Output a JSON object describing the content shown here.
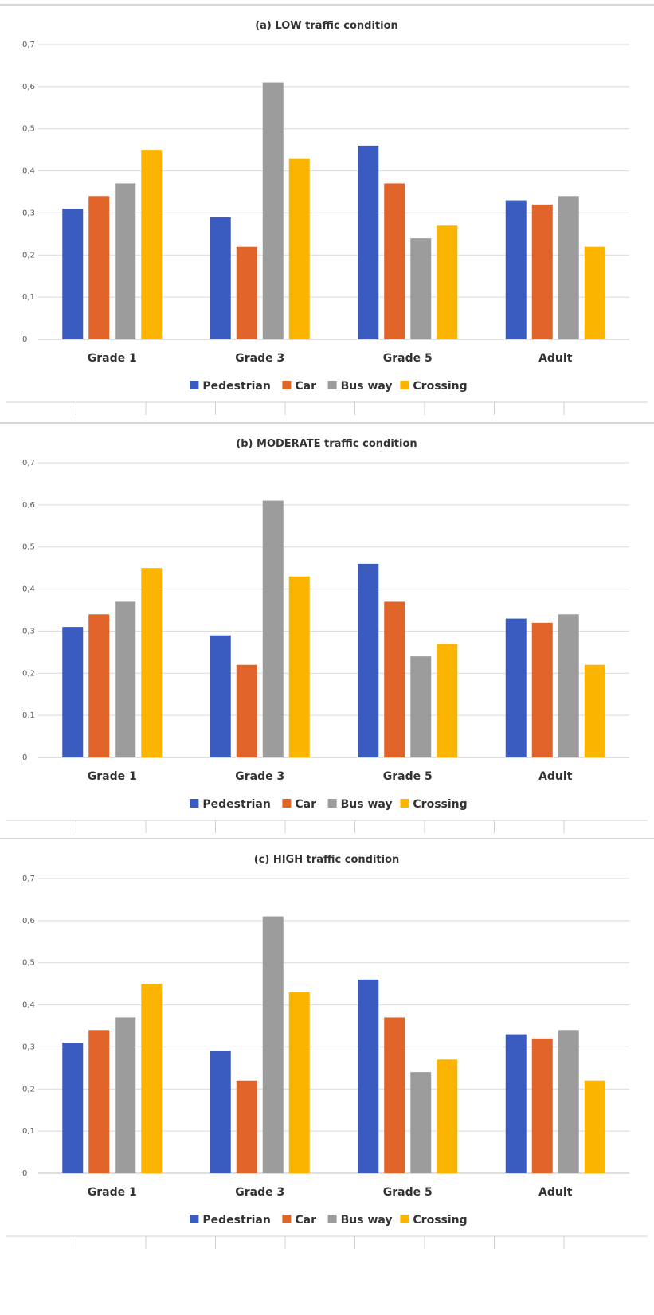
{
  "colors": {
    "Pedestrian": "#3a5bbf",
    "Car": "#e0642a",
    "Bus way": "#9c9c9c",
    "Crossing": "#fbb400"
  },
  "chart_data": [
    {
      "type": "bar",
      "title": "(a) LOW traffic condition",
      "categories": [
        "Grade 1",
        "Grade 3",
        "Grade 5",
        "Adult"
      ],
      "series": [
        {
          "name": "Pedestrian",
          "values": [
            0.31,
            0.29,
            0.46,
            0.33
          ]
        },
        {
          "name": "Car",
          "values": [
            0.34,
            0.22,
            0.37,
            0.32
          ]
        },
        {
          "name": "Bus way",
          "values": [
            0.37,
            0.61,
            0.24,
            0.34
          ]
        },
        {
          "name": "Crossing",
          "values": [
            0.45,
            0.43,
            0.27,
            0.22
          ]
        }
      ],
      "ylim": [
        0,
        0.7
      ],
      "yticks": [
        "0",
        "0,1",
        "0,2",
        "0,3",
        "0,4",
        "0,5",
        "0,6",
        "0,7"
      ],
      "grid": true,
      "legend": "bottom"
    },
    {
      "type": "bar",
      "title": "(b) MODERATE traffic condition",
      "categories": [
        "Grade 1",
        "Grade 3",
        "Grade 5",
        "Adult"
      ],
      "series": [
        {
          "name": "Pedestrian",
          "values": [
            0.31,
            0.29,
            0.46,
            0.33
          ]
        },
        {
          "name": "Car",
          "values": [
            0.34,
            0.22,
            0.37,
            0.32
          ]
        },
        {
          "name": "Bus way",
          "values": [
            0.37,
            0.61,
            0.24,
            0.34
          ]
        },
        {
          "name": "Crossing",
          "values": [
            0.45,
            0.43,
            0.27,
            0.22
          ]
        }
      ],
      "ylim": [
        0,
        0.7
      ],
      "yticks": [
        "0",
        "0,1",
        "0,2",
        "0,3",
        "0,4",
        "0,5",
        "0,6",
        "0,7"
      ],
      "grid": true,
      "legend": "bottom"
    },
    {
      "type": "bar",
      "title": "(c) HIGH traffic condition",
      "categories": [
        "Grade 1",
        "Grade 3",
        "Grade 5",
        "Adult"
      ],
      "series": [
        {
          "name": "Pedestrian",
          "values": [
            0.31,
            0.29,
            0.46,
            0.33
          ]
        },
        {
          "name": "Car",
          "values": [
            0.34,
            0.22,
            0.37,
            0.32
          ]
        },
        {
          "name": "Bus way",
          "values": [
            0.37,
            0.61,
            0.24,
            0.34
          ]
        },
        {
          "name": "Crossing",
          "values": [
            0.45,
            0.43,
            0.27,
            0.22
          ]
        }
      ],
      "ylim": [
        0,
        0.7
      ],
      "yticks": [
        "0",
        "0,1",
        "0,2",
        "0,3",
        "0,4",
        "0,5",
        "0,6",
        "0,7"
      ],
      "grid": true,
      "legend": "bottom"
    }
  ]
}
